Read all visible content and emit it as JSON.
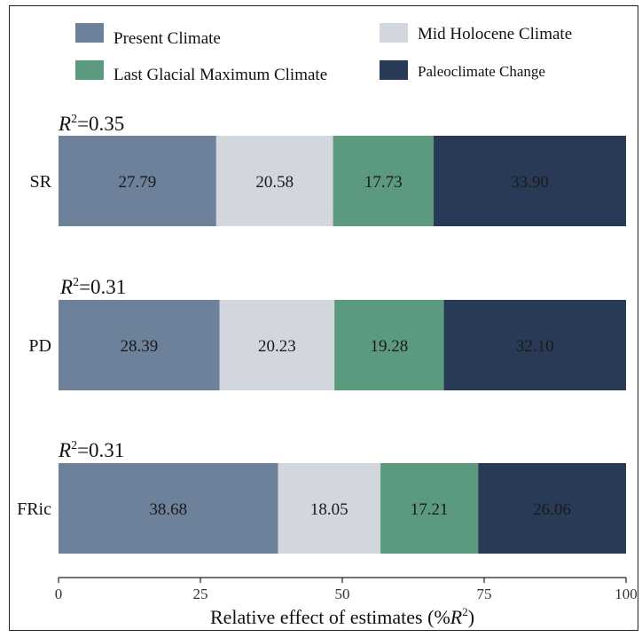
{
  "chart_data": {
    "type": "bar",
    "orientation": "horizontal",
    "stacked": true,
    "categories": [
      "SR",
      "PD",
      "FRic"
    ],
    "annotations": [
      {
        "prefix": "R",
        "superscript": "2",
        "suffix": "=0.35"
      },
      {
        "prefix": "R",
        "superscript": "2",
        "suffix": "=0.31"
      },
      {
        "prefix": "R",
        "superscript": "2",
        "suffix": "=0.31"
      }
    ],
    "series": [
      {
        "name": "Present Climate",
        "color": "#6e819a",
        "values": [
          27.79,
          28.39,
          38.68
        ]
      },
      {
        "name": "Mid Holocene Climate",
        "color": "#d2d6dd",
        "values": [
          20.58,
          20.23,
          18.05
        ]
      },
      {
        "name": "Last Glacial Maximum Climate",
        "color": "#5c9a80",
        "values": [
          17.73,
          19.28,
          17.21
        ]
      },
      {
        "name": "Paleoclimate Change",
        "color": "#293a57",
        "values": [
          33.9,
          32.1,
          26.06
        ]
      }
    ],
    "value_labels": [
      [
        "27.79",
        "20.58",
        "17.73",
        "33.90"
      ],
      [
        "28.39",
        "20.23",
        "19.28",
        "32.10"
      ],
      [
        "38.68",
        "18.05",
        "17.21",
        "26.06"
      ]
    ],
    "x_ticks": [
      0,
      25,
      50,
      75,
      100
    ],
    "x_tick_labels": [
      "0",
      "25",
      "50",
      "75",
      "100"
    ],
    "xlabel": {
      "prefix": "Relative effect of estimates (%",
      "italic": "R",
      "superscript": "2",
      "suffix": ")"
    },
    "xlim": [
      0,
      100
    ],
    "grid": false,
    "legend_position": "top"
  }
}
